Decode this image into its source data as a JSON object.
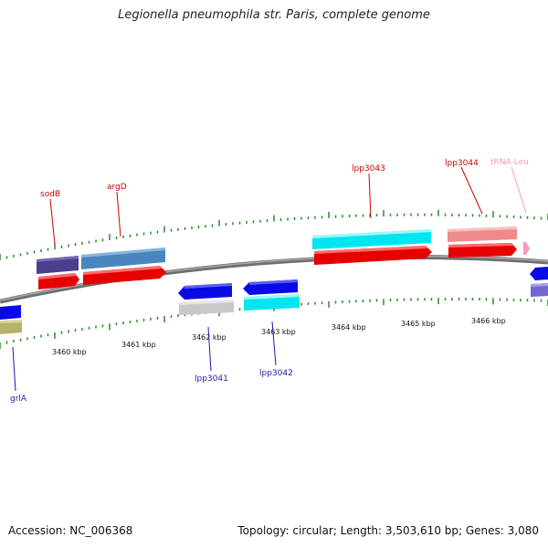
{
  "title": "Legionella pneumophila str. Paris, complete genome",
  "footer": {
    "accession_label": "Accession:",
    "accession": "NC_006368",
    "summary": "Topology: circular; Length: 3,503,610 bp; Genes: 3,080"
  },
  "scale": {
    "tick_labels": [
      "3460 kbp",
      "3461 kbp",
      "3462 kbp",
      "3463 kbp",
      "3464 kbp",
      "3465 kbp",
      "3466 kbp"
    ]
  },
  "gene_labels": {
    "forward": [
      "sodB",
      "argD",
      "lpp3043",
      "lpp3044",
      "tRNA-Leu"
    ],
    "reverse": [
      "grlA",
      "lpp3041",
      "lpp3042"
    ]
  },
  "colors": {
    "forward_label": "#cc0000",
    "reverse_label": "#1a1aa8",
    "trna_label": "#f29ab8",
    "cds": "#ee0000",
    "cds_reverse": "#0a0ae6",
    "tick": "#2a8a2a",
    "backbone": "#8a8a8a"
  }
}
